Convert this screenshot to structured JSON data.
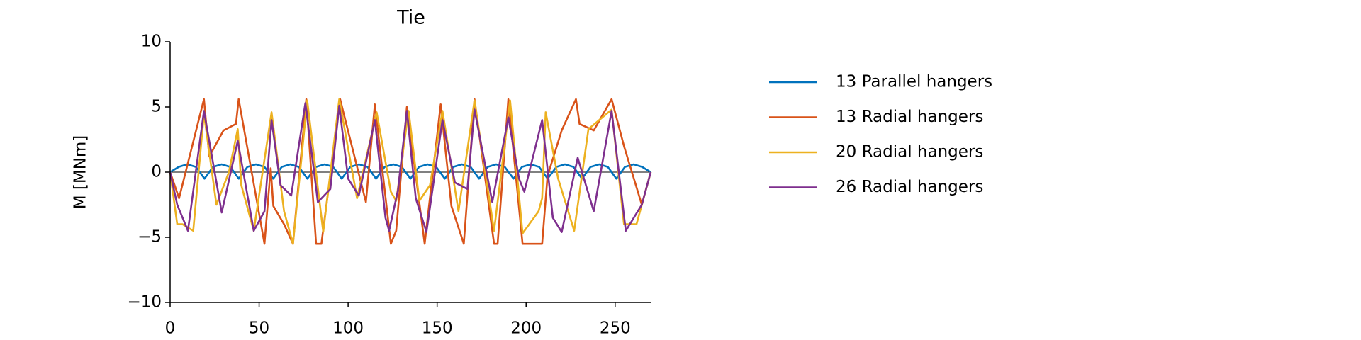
{
  "chart_data": {
    "type": "line",
    "title": "Tie",
    "ylabel": "M [MNm]",
    "xlim": [
      0,
      270
    ],
    "ylim": [
      -10,
      10
    ],
    "xticks": [
      0,
      50,
      100,
      150,
      200,
      250
    ],
    "yticks": [
      {
        "value": -10,
        "label": "−10"
      },
      {
        "value": -5,
        "label": "−5"
      },
      0,
      5,
      10
    ],
    "legend": "outside-right",
    "series": [
      {
        "name": "13 Parallel hangers",
        "color": "#0072bd",
        "x": [
          0,
          4.8,
          9.6,
          14.5,
          19.3,
          24.1,
          28.9,
          33.8,
          38.6,
          43.4,
          48.2,
          53.0,
          57.9,
          62.7,
          67.5,
          72.3,
          77.1,
          82.0,
          86.8,
          91.6,
          96.4,
          101.2,
          106.1,
          110.9,
          115.7,
          120.5,
          125.4,
          130.2,
          135.0,
          139.8,
          144.6,
          149.5,
          154.3,
          159.1,
          163.9,
          168.8,
          173.6,
          178.4,
          183.2,
          188.0,
          192.9,
          197.7,
          202.5,
          207.3,
          212.1,
          217.0,
          221.8,
          226.6,
          231.4,
          236.2,
          241.1,
          245.9,
          250.7,
          255.5,
          260.4,
          265.2,
          270.0
        ],
        "values": [
          0,
          0.4,
          0.6,
          0.4,
          -0.5,
          0.4,
          0.6,
          0.4,
          -0.5,
          0.4,
          0.6,
          0.4,
          -0.5,
          0.4,
          0.6,
          0.4,
          -0.5,
          0.4,
          0.6,
          0.4,
          -0.5,
          0.4,
          0.6,
          0.4,
          -0.5,
          0.4,
          0.6,
          0.4,
          -0.5,
          0.4,
          0.6,
          0.4,
          -0.5,
          0.4,
          0.6,
          0.4,
          -0.5,
          0.4,
          0.6,
          0.4,
          -0.5,
          0.4,
          0.6,
          0.4,
          -0.5,
          0.4,
          0.6,
          0.4,
          -0.5,
          0.4,
          0.6,
          0.4,
          -0.5,
          0.4,
          0.6,
          0.4,
          0
        ]
      },
      {
        "name": "13 Radial hangers",
        "color": "#d95319",
        "x": [
          0,
          5,
          19,
          22,
          30,
          37,
          38.5,
          53,
          56.5,
          58,
          64,
          69,
          76.5,
          82,
          85,
          95.5,
          110,
          115,
          124,
          127,
          133,
          143,
          152,
          158,
          165,
          171,
          182,
          184,
          190,
          198,
          209,
          212,
          220,
          228,
          230,
          238,
          248,
          255,
          265,
          270
        ],
        "values": [
          0,
          -2,
          5.6,
          1.2,
          3.2,
          3.7,
          5.6,
          -5.5,
          0.3,
          -2.6,
          -4,
          -5.5,
          5.6,
          -5.5,
          -5.5,
          5.6,
          -2.3,
          5.2,
          -5.5,
          -4.5,
          5,
          -5.5,
          5.2,
          -2.6,
          -5.5,
          5.6,
          -5.5,
          -5.5,
          5.6,
          -5.5,
          -5.5,
          -0.3,
          3.2,
          5.6,
          3.7,
          3.2,
          5.6,
          2,
          -2.5,
          0
        ]
      },
      {
        "name": "20 Radial hangers",
        "color": "#edb120",
        "x": [
          0,
          4,
          7,
          13,
          19,
          26,
          33,
          38,
          40,
          47,
          57,
          64,
          69,
          77,
          86,
          95,
          105,
          116,
          124,
          127,
          134,
          140,
          146,
          153,
          162,
          171,
          182,
          191,
          198,
          207,
          209,
          211,
          218,
          227,
          235,
          248,
          255,
          262,
          270
        ],
        "values": [
          0,
          -4,
          -4,
          -4.5,
          4.5,
          -2.5,
          0,
          3.3,
          -1,
          -4.5,
          4.6,
          -3,
          -5.5,
          5.5,
          -4.6,
          5.6,
          -2,
          4.6,
          -1.5,
          -2.2,
          4.7,
          -2.2,
          -1,
          4.7,
          -3,
          5.5,
          -4.5,
          5.5,
          -4.7,
          -3,
          -2,
          4.6,
          -0.5,
          -4.5,
          3.3,
          4.8,
          -4,
          -4,
          0
        ]
      },
      {
        "name": "26 Radial hangers",
        "color": "#7e2f8e",
        "x": [
          0,
          4,
          10,
          19,
          29,
          38,
          47,
          53,
          57,
          62,
          68,
          76,
          83,
          90,
          95,
          100,
          106,
          115,
          121,
          123,
          128,
          133,
          138,
          144,
          153,
          160,
          167,
          171,
          181,
          190,
          196,
          199,
          209,
          215,
          220,
          229,
          238,
          248,
          256,
          265,
          270
        ],
        "values": [
          0,
          -2.5,
          -4.5,
          4.7,
          -3.1,
          2.4,
          -4.5,
          -3,
          4,
          -1,
          -1.8,
          5.3,
          -2.3,
          -1.3,
          5.1,
          -0.5,
          -1.8,
          4,
          -3.5,
          -4.5,
          -1.4,
          4.7,
          -2,
          -4.6,
          4,
          -0.8,
          -1.3,
          4.8,
          -2.3,
          4.2,
          -0.5,
          -1.5,
          4,
          -3.5,
          -4.6,
          1.1,
          -3,
          4.7,
          -4.5,
          -2.5,
          0
        ]
      }
    ]
  }
}
